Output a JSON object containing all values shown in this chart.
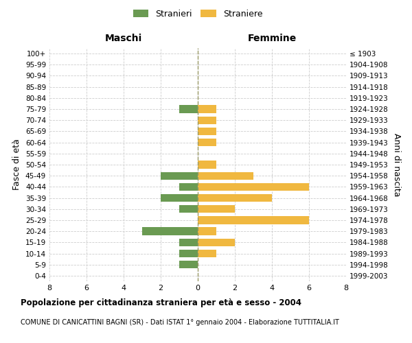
{
  "age_groups": [
    "100+",
    "95-99",
    "90-94",
    "85-89",
    "80-84",
    "75-79",
    "70-74",
    "65-69",
    "60-64",
    "55-59",
    "50-54",
    "45-49",
    "40-44",
    "35-39",
    "30-34",
    "25-29",
    "20-24",
    "15-19",
    "10-14",
    "5-9",
    "0-4"
  ],
  "birth_years": [
    "≤ 1903",
    "1904-1908",
    "1909-1913",
    "1914-1918",
    "1919-1923",
    "1924-1928",
    "1929-1933",
    "1934-1938",
    "1939-1943",
    "1944-1948",
    "1949-1953",
    "1954-1958",
    "1959-1963",
    "1964-1968",
    "1969-1973",
    "1974-1978",
    "1979-1983",
    "1984-1988",
    "1989-1993",
    "1994-1998",
    "1999-2003"
  ],
  "maschi": [
    0,
    0,
    0,
    0,
    0,
    1,
    0,
    0,
    0,
    0,
    0,
    2,
    1,
    2,
    1,
    0,
    3,
    1,
    1,
    1,
    0
  ],
  "femmine": [
    0,
    0,
    0,
    0,
    0,
    1,
    1,
    1,
    1,
    0,
    1,
    3,
    6,
    4,
    2,
    6,
    1,
    2,
    1,
    0,
    0
  ],
  "color_maschi": "#6a9a52",
  "color_femmine": "#f0b840",
  "xlim": 8,
  "title": "Popolazione per cittadinanza straniera per età e sesso - 2004",
  "subtitle": "COMUNE DI CANICATTINI BAGNI (SR) - Dati ISTAT 1° gennaio 2004 - Elaborazione TUTTITALIA.IT",
  "ylabel_left": "Fasce di età",
  "ylabel_right": "Anni di nascita",
  "header_left": "Maschi",
  "header_right": "Femmine",
  "legend_stranieri": "Stranieri",
  "legend_straniere": "Straniere",
  "background_color": "#ffffff",
  "grid_color": "#cccccc"
}
